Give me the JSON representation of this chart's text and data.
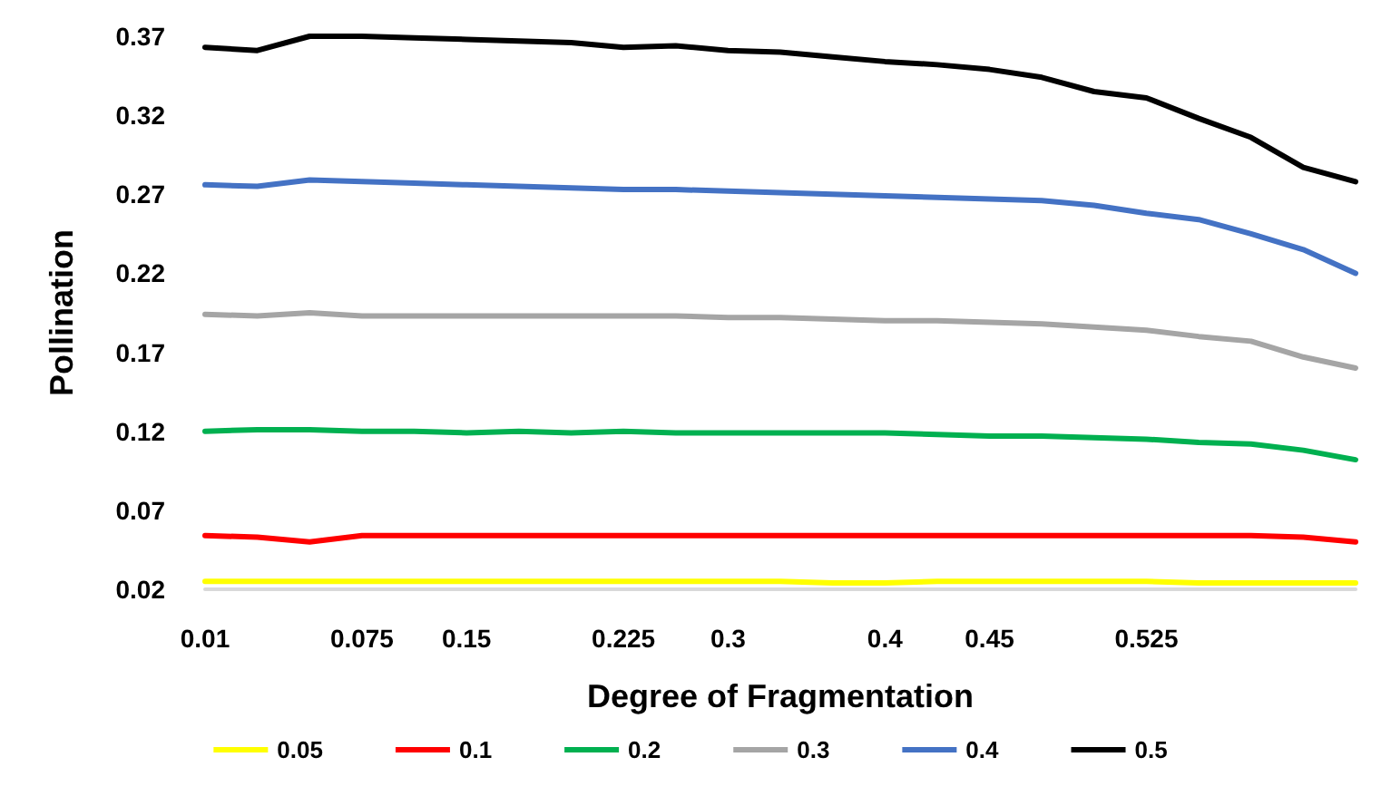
{
  "chart_data": {
    "type": "line",
    "xlabel": "Degree of Fragmentation",
    "ylabel": "Pollination",
    "categories": [
      "0.01",
      null,
      null,
      "0.075",
      null,
      "0.15",
      null,
      null,
      "0.225",
      null,
      "0.3",
      null,
      null,
      "0.4",
      null,
      "0.45",
      null,
      null,
      "0.525",
      null,
      null,
      null,
      null
    ],
    "ylim": [
      0.02,
      0.37
    ],
    "yticks": [
      0.02,
      0.07,
      0.12,
      0.17,
      0.22,
      0.27,
      0.32,
      0.37
    ],
    "grid": false,
    "legend": "bottom",
    "marker": "none",
    "line_style": "solid",
    "series": [
      {
        "name": "0.05",
        "color": "#ffff00",
        "values": [
          0.025,
          0.025,
          0.025,
          0.025,
          0.025,
          0.025,
          0.025,
          0.025,
          0.025,
          0.025,
          0.025,
          0.025,
          0.024,
          0.024,
          0.025,
          0.025,
          0.025,
          0.025,
          0.025,
          0.024,
          0.024,
          0.024,
          0.024
        ]
      },
      {
        "name": "0.1",
        "color": "#ff0000",
        "values": [
          0.054,
          0.053,
          0.05,
          0.054,
          0.054,
          0.054,
          0.054,
          0.054,
          0.054,
          0.054,
          0.054,
          0.054,
          0.054,
          0.054,
          0.054,
          0.054,
          0.054,
          0.054,
          0.054,
          0.054,
          0.054,
          0.053,
          0.05
        ]
      },
      {
        "name": "0.2",
        "color": "#00b050",
        "values": [
          0.12,
          0.121,
          0.121,
          0.12,
          0.12,
          0.119,
          0.12,
          0.119,
          0.12,
          0.119,
          0.119,
          0.119,
          0.119,
          0.119,
          0.118,
          0.117,
          0.117,
          0.116,
          0.115,
          0.113,
          0.112,
          0.108,
          0.102
        ]
      },
      {
        "name": "0.3",
        "color": "#a5a5a5",
        "values": [
          0.194,
          0.193,
          0.195,
          0.193,
          0.193,
          0.193,
          0.193,
          0.193,
          0.193,
          0.193,
          0.192,
          0.192,
          0.191,
          0.19,
          0.19,
          0.189,
          0.188,
          0.186,
          0.184,
          0.18,
          0.177,
          0.167,
          0.16
        ]
      },
      {
        "name": "0.4",
        "color": "#4472c4",
        "values": [
          0.276,
          0.275,
          0.279,
          0.278,
          0.277,
          0.276,
          0.275,
          0.274,
          0.273,
          0.273,
          0.272,
          0.271,
          0.27,
          0.269,
          0.268,
          0.267,
          0.266,
          0.263,
          0.258,
          0.254,
          0.245,
          0.235,
          0.22
        ]
      },
      {
        "name": "0.5",
        "color": "#000000",
        "values": [
          0.363,
          0.361,
          0.37,
          0.37,
          0.369,
          0.368,
          0.367,
          0.366,
          0.363,
          0.364,
          0.361,
          0.36,
          0.357,
          0.354,
          0.352,
          0.349,
          0.344,
          0.335,
          0.331,
          0.318,
          0.306,
          0.287,
          0.278
        ]
      }
    ]
  }
}
